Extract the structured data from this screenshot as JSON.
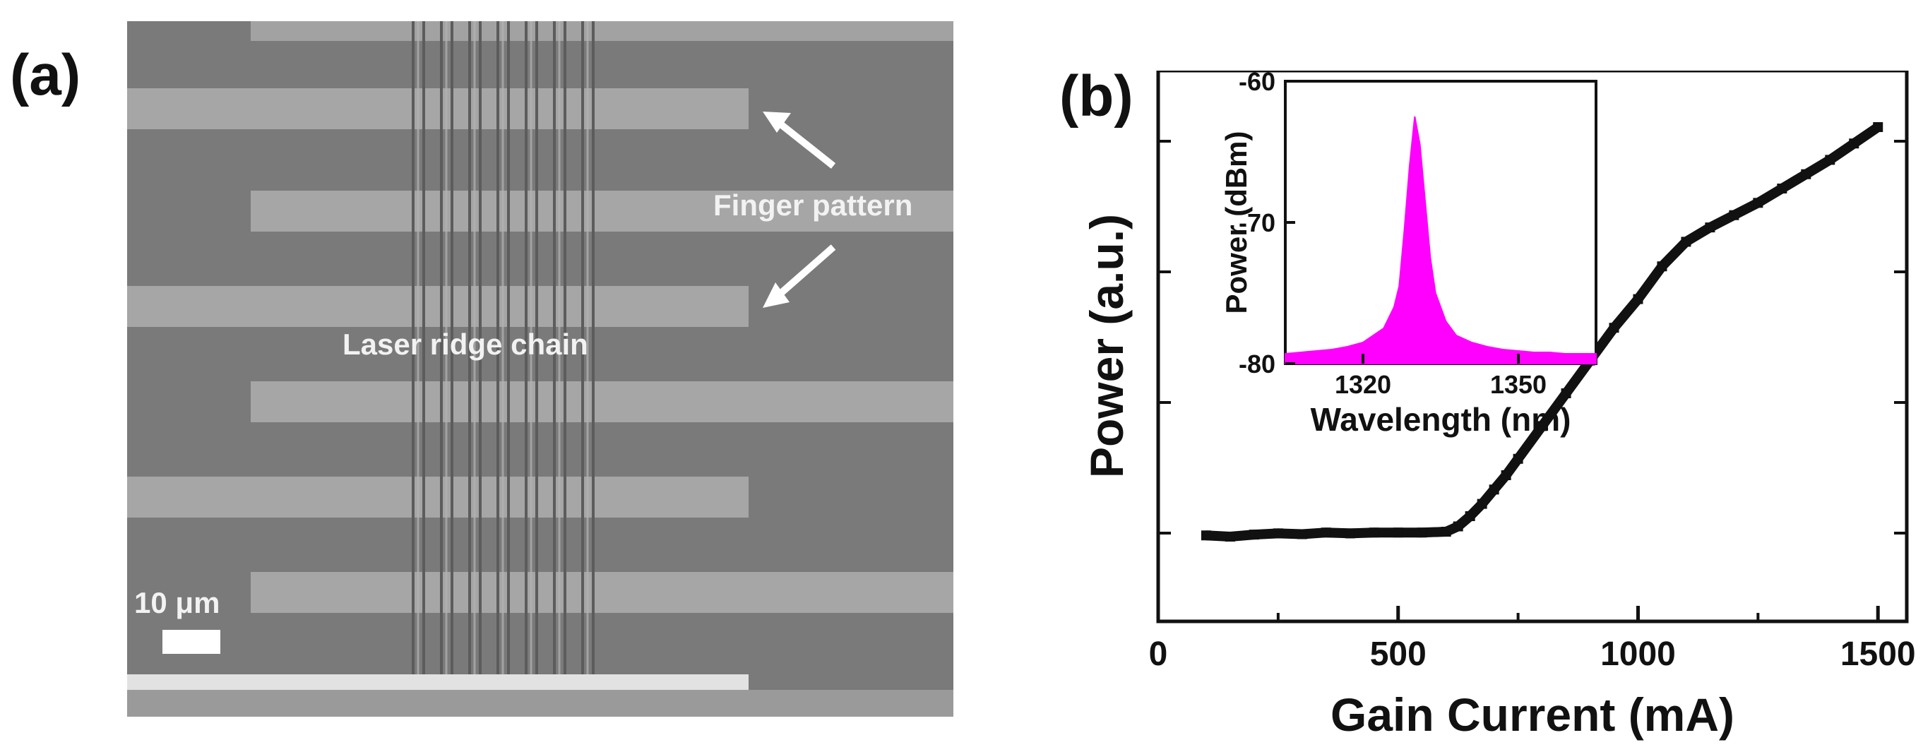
{
  "panels": {
    "a": {
      "label": "(a)",
      "annotations": {
        "finger_pattern": "Finger pattern",
        "laser_ridge_chain": "Laser ridge chain",
        "scale_bar": "10 μm"
      }
    },
    "b": {
      "label": "(b)"
    }
  },
  "colors": {
    "sem_background": "#7a7a7a",
    "sem_finger": "#a4a4a4",
    "main_curve": "#111111",
    "spectrum": "#ff00ff"
  },
  "chart_data": [
    {
      "type": "line",
      "xlabel": "Gain Current (mA)",
      "ylabel": "Power (a.u.)",
      "xlim": [
        0,
        1560
      ],
      "xticks": [
        0,
        500,
        1000,
        1500
      ],
      "xtick_labels": [
        "0",
        "500",
        "1000",
        "1500"
      ],
      "ytick_labels_shown": false,
      "series": [
        {
          "x": [
            100,
            150,
            200,
            250,
            300,
            350,
            400,
            450,
            500,
            550,
            600,
            625,
            650,
            675,
            700,
            725,
            750,
            800,
            850,
            900,
            950,
            1000,
            1050,
            1100,
            1150,
            1200,
            1250,
            1300,
            1350,
            1400,
            1450,
            1500
          ],
          "y": [
            0.003,
            0.0,
            0.005,
            0.008,
            0.006,
            0.01,
            0.008,
            0.01,
            0.01,
            0.01,
            0.012,
            0.025,
            0.05,
            0.08,
            0.115,
            0.15,
            0.19,
            0.27,
            0.35,
            0.43,
            0.51,
            0.58,
            0.66,
            0.72,
            0.755,
            0.785,
            0.815,
            0.85,
            0.885,
            0.92,
            0.96,
            1.0
          ]
        }
      ]
    },
    {
      "type": "area",
      "inset": true,
      "xlabel": "Wavelength (nm)",
      "ylabel": "Power (dBm)",
      "xlim": [
        1305,
        1365
      ],
      "ylim": [
        -80,
        -60
      ],
      "xticks": [
        1320,
        1350
      ],
      "xtick_labels": [
        "1320",
        "1350"
      ],
      "yticks": [
        -60,
        -70,
        -80
      ],
      "ytick_labels": [
        "-60",
        "-70",
        "-80"
      ],
      "series": [
        {
          "x": [
            1305,
            1308,
            1311,
            1314,
            1317,
            1320,
            1322,
            1324,
            1326,
            1327,
            1328,
            1329,
            1330,
            1331,
            1332,
            1333,
            1334,
            1336,
            1338,
            1341,
            1344,
            1347,
            1350,
            1353,
            1356,
            1359,
            1362,
            1365
          ],
          "y": [
            -79.3,
            -79.2,
            -79.1,
            -79.0,
            -78.8,
            -78.5,
            -78.0,
            -77.5,
            -76.0,
            -74.5,
            -70.5,
            -66.0,
            -62.5,
            -64.5,
            -68.5,
            -72.5,
            -75.0,
            -77.0,
            -78.0,
            -78.5,
            -78.8,
            -79.0,
            -79.1,
            -79.2,
            -79.2,
            -79.3,
            -79.3,
            -79.3
          ]
        }
      ]
    }
  ]
}
